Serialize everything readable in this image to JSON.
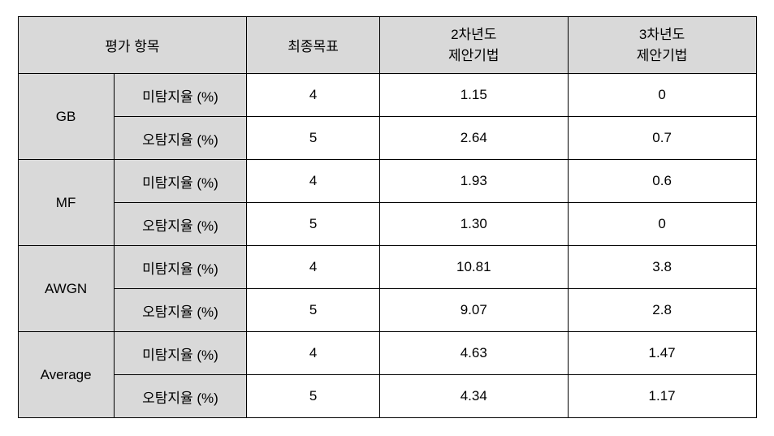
{
  "header": {
    "eval_item": "평가 항목",
    "final_goal": "최종목표",
    "year2_line1": "2차년도",
    "year2_line2": "제안기법",
    "year3_line1": "3차년도",
    "year3_line2": "제안기법"
  },
  "metrics": {
    "miss_rate": "미탐지율 (%)",
    "false_rate": "오탐지율 (%)"
  },
  "categories": [
    {
      "name": "GB",
      "rows": [
        {
          "metric_key": "miss_rate",
          "goal": "4",
          "year2": "1.15",
          "year3": "0"
        },
        {
          "metric_key": "false_rate",
          "goal": "5",
          "year2": "2.64",
          "year3": "0.7"
        }
      ]
    },
    {
      "name": "MF",
      "rows": [
        {
          "metric_key": "miss_rate",
          "goal": "4",
          "year2": "1.93",
          "year3": "0.6"
        },
        {
          "metric_key": "false_rate",
          "goal": "5",
          "year2": "1.30",
          "year3": "0"
        }
      ]
    },
    {
      "name": "AWGN",
      "rows": [
        {
          "metric_key": "miss_rate",
          "goal": "4",
          "year2": "10.81",
          "year3": "3.8"
        },
        {
          "metric_key": "false_rate",
          "goal": "5",
          "year2": "9.07",
          "year3": "2.8"
        }
      ]
    },
    {
      "name": "Average",
      "rows": [
        {
          "metric_key": "miss_rate",
          "goal": "4",
          "year2": "4.63",
          "year3": "1.47"
        },
        {
          "metric_key": "false_rate",
          "goal": "5",
          "year2": "4.34",
          "year3": "1.17"
        }
      ]
    }
  ]
}
